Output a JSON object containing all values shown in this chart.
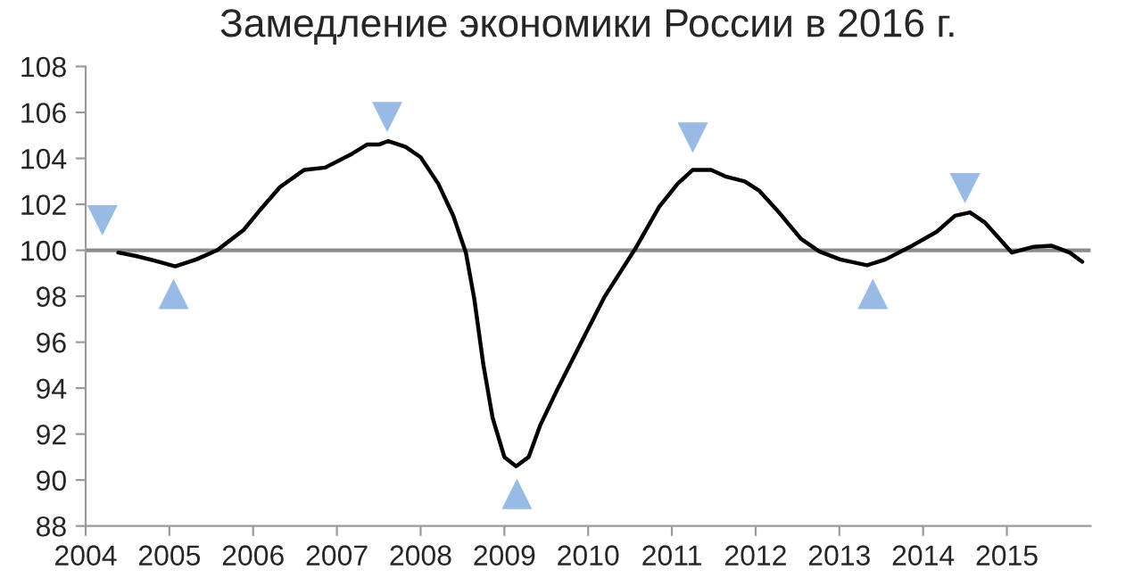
{
  "chart_data": {
    "type": "line",
    "title": "Замедление экономики России в 2016 г.",
    "xlim": [
      2004,
      2016
    ],
    "xticks": [
      2004,
      2005,
      2006,
      2007,
      2008,
      2009,
      2010,
      2011,
      2012,
      2013,
      2014,
      2015
    ],
    "ylim": [
      88,
      108
    ],
    "yticks": [
      88,
      90,
      92,
      94,
      96,
      98,
      100,
      102,
      104,
      106,
      108
    ],
    "grid": false,
    "legend": false,
    "ref_lines": [
      {
        "axis": "y",
        "value": 100,
        "color": "#8c8c8c"
      }
    ],
    "series": [
      {
        "color": "#000000",
        "marker": "none",
        "x": [
          2004.39,
          2004.6,
          2004.82,
          2005.07,
          2005.32,
          2005.57,
          2005.89,
          2006.07,
          2006.32,
          2006.61,
          2006.86,
          2007.18,
          2007.36,
          2007.5,
          2007.61,
          2007.82,
          2008.0,
          2008.21,
          2008.39,
          2008.54,
          2008.64,
          2008.75,
          2008.86,
          2009.0,
          2009.14,
          2009.29,
          2009.43,
          2009.64,
          2009.96,
          2010.2,
          2010.56,
          2010.85,
          2011.07,
          2011.25,
          2011.47,
          2011.65,
          2011.87,
          2012.04,
          2012.29,
          2012.54,
          2012.76,
          2013.01,
          2013.33,
          2013.55,
          2013.87,
          2014.16,
          2014.38,
          2014.56,
          2014.74,
          2015.06,
          2015.32,
          2015.53,
          2015.75,
          2015.9
        ],
        "values": [
          99.9,
          99.75,
          99.55,
          99.3,
          99.6,
          100.0,
          100.9,
          101.7,
          102.75,
          103.5,
          103.6,
          104.2,
          104.6,
          104.6,
          104.75,
          104.5,
          104.05,
          102.9,
          101.5,
          99.9,
          97.9,
          95.0,
          92.7,
          91.0,
          90.6,
          91.0,
          92.4,
          94.0,
          96.3,
          98.0,
          100.05,
          101.9,
          102.9,
          103.5,
          103.5,
          103.2,
          103.0,
          102.6,
          101.6,
          100.5,
          99.95,
          99.6,
          99.35,
          99.6,
          100.2,
          100.8,
          101.5,
          101.65,
          101.2,
          99.9,
          100.15,
          100.2,
          99.9,
          99.5
        ]
      },
      {
        "type": "scatter",
        "color": "#8db3e2",
        "marker": "triangle_down",
        "x": [
          2004.2,
          2007.6,
          2011.25,
          2014.5
        ],
        "values": [
          101.3,
          105.8,
          104.9,
          102.7
        ]
      },
      {
        "type": "scatter",
        "color": "#8db3e2",
        "marker": "triangle",
        "x": [
          2005.05,
          2009.15,
          2013.4
        ],
        "values": [
          98.1,
          89.4,
          98.1
        ]
      }
    ]
  }
}
